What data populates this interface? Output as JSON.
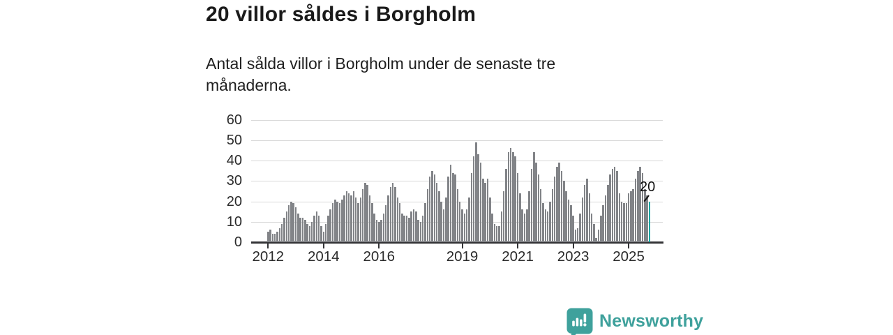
{
  "header": {
    "title": "20 villor såldes i Borgholm",
    "subtitle": "Antal sålda villor i Borgholm under de senaste tre månaderna."
  },
  "chart_data": {
    "type": "bar",
    "title": "20 villor såldes i Borgholm",
    "xlabel": "",
    "ylabel": "",
    "ylim": [
      0,
      60
    ],
    "grid": "horizontal",
    "x_start_month": "2012-01",
    "x_end_month": "2025-10",
    "yticks": [
      0,
      10,
      20,
      30,
      40,
      50,
      60
    ],
    "xticks": [
      {
        "label": "2012",
        "month_index": 0
      },
      {
        "label": "2014",
        "month_index": 24
      },
      {
        "label": "2016",
        "month_index": 48
      },
      {
        "label": "2019",
        "month_index": 84
      },
      {
        "label": "2021",
        "month_index": 108
      },
      {
        "label": "2023",
        "month_index": 132
      },
      {
        "label": "2025",
        "month_index": 156
      }
    ],
    "values": [
      5,
      6,
      4,
      4,
      5,
      7,
      9,
      12,
      15,
      18,
      20,
      19,
      17,
      14,
      12,
      12,
      11,
      9,
      8,
      10,
      13,
      15,
      13,
      8,
      5,
      9,
      13,
      16,
      19,
      21,
      20,
      19,
      21,
      23,
      25,
      24,
      23,
      25,
      22,
      19,
      22,
      26,
      29,
      28,
      23,
      19,
      14,
      11,
      10,
      11,
      14,
      18,
      23,
      27,
      29,
      27,
      22,
      19,
      14,
      13,
      13,
      12,
      15,
      16,
      15,
      11,
      10,
      13,
      19,
      26,
      32,
      35,
      33,
      29,
      25,
      20,
      16,
      22,
      32,
      38,
      34,
      33,
      26,
      20,
      16,
      14,
      16,
      22,
      34,
      42,
      49,
      43,
      39,
      31,
      29,
      31,
      22,
      14,
      9,
      8,
      8,
      15,
      25,
      36,
      44,
      46,
      44,
      42,
      34,
      24,
      16,
      14,
      16,
      25,
      36,
      44,
      39,
      33,
      26,
      19,
      16,
      15,
      20,
      26,
      32,
      37,
      39,
      35,
      30,
      25,
      21,
      18,
      13,
      6,
      7,
      14,
      22,
      28,
      31,
      24,
      14,
      9,
      2,
      6,
      13,
      18,
      23,
      28,
      33,
      36,
      37,
      35,
      24,
      20,
      19,
      19,
      24,
      25,
      26,
      31,
      35,
      37,
      34,
      26,
      23,
      20
    ],
    "highlight_last_bar": true,
    "bar_color": "#828488",
    "highlight_color": "#0ba6a3",
    "annotation": {
      "text": "20",
      "refers_to": "last-bar"
    }
  },
  "footer": {
    "brand": "Newsworthy",
    "brand_color": "#3fa19c"
  }
}
